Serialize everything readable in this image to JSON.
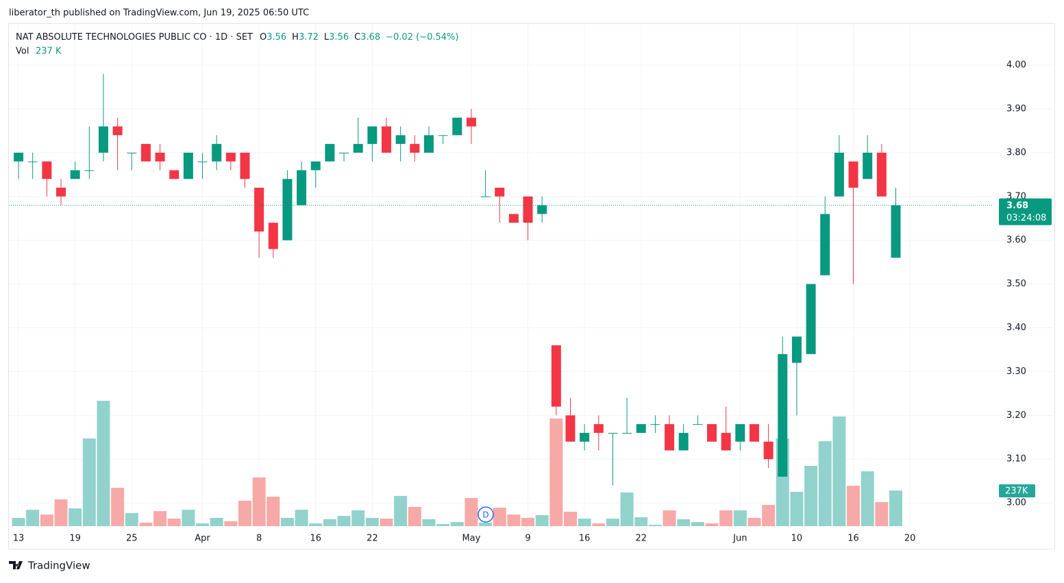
{
  "chart_data": {
    "type": "candlestick",
    "published": "liberator_th published on TradingView.com, Jun 19, 2025 06:50 UTC",
    "title": "NAT ABSOLUTE TECHNOLOGIES PUBLIC CO · 1D · SET",
    "ohlc_letters": [
      "O",
      "H",
      "L",
      "C"
    ],
    "change": "−0.02 (−0.54%)",
    "volume_title": "Vol",
    "last_volume_label": "237 K",
    "volume_axis_label": "237K",
    "countdown": "03:24:08",
    "dividend_marker": "D",
    "brand": "TradingView",
    "up_color": "#089981",
    "down_color": "#f23645",
    "volume_up_color": "#92d2cc",
    "volume_down_color": "#f7a9a7",
    "open": [
      3.78,
      3.78,
      3.78,
      3.72,
      3.74,
      3.76,
      3.8,
      3.86,
      3.8,
      3.82,
      3.8,
      3.76,
      3.74,
      3.78,
      3.78,
      3.8,
      3.8,
      3.72,
      3.64,
      3.6,
      3.68,
      3.76,
      3.78,
      3.8,
      3.8,
      3.82,
      3.86,
      3.82,
      3.82,
      3.8,
      3.84,
      3.84,
      3.88,
      3.7,
      3.72,
      3.66,
      3.7,
      3.66,
      3.36,
      3.2,
      3.14,
      3.18,
      3.16,
      3.16,
      3.16,
      3.18,
      3.18,
      3.12,
      3.18,
      3.18,
      3.16,
      3.14,
      3.18,
      3.14,
      3.06,
      3.32,
      3.34,
      3.52,
      3.7,
      3.78,
      3.74,
      3.8,
      3.56
    ],
    "high": [
      3.8,
      3.8,
      3.78,
      3.74,
      3.78,
      3.86,
      3.98,
      3.88,
      3.8,
      3.82,
      3.82,
      3.76,
      3.8,
      3.8,
      3.84,
      3.8,
      3.8,
      3.72,
      3.64,
      3.76,
      3.78,
      3.78,
      3.82,
      3.8,
      3.88,
      3.86,
      3.88,
      3.86,
      3.84,
      3.86,
      3.84,
      3.88,
      3.9,
      3.76,
      3.72,
      3.66,
      3.7,
      3.7,
      3.36,
      3.24,
      3.18,
      3.2,
      3.16,
      3.24,
      3.18,
      3.2,
      3.2,
      3.18,
      3.2,
      3.18,
      3.22,
      3.18,
      3.18,
      3.18,
      3.38,
      3.38,
      3.5,
      3.7,
      3.84,
      3.78,
      3.84,
      3.82,
      3.72
    ],
    "low": [
      3.74,
      3.74,
      3.7,
      3.68,
      3.74,
      3.74,
      3.78,
      3.76,
      3.76,
      3.78,
      3.76,
      3.74,
      3.74,
      3.74,
      3.76,
      3.76,
      3.72,
      3.56,
      3.56,
      3.6,
      3.68,
      3.72,
      3.78,
      3.78,
      3.8,
      3.78,
      3.8,
      3.78,
      3.78,
      3.8,
      3.82,
      3.84,
      3.82,
      3.7,
      3.64,
      3.64,
      3.6,
      3.64,
      3.2,
      3.14,
      3.12,
      3.12,
      3.04,
      3.16,
      3.16,
      3.16,
      3.12,
      3.12,
      3.18,
      3.14,
      3.12,
      3.12,
      3.14,
      3.08,
      3.06,
      3.2,
      3.34,
      3.52,
      3.7,
      3.5,
      3.74,
      3.7,
      3.56
    ],
    "close": [
      3.8,
      3.78,
      3.74,
      3.7,
      3.76,
      3.76,
      3.86,
      3.84,
      3.8,
      3.78,
      3.78,
      3.74,
      3.8,
      3.78,
      3.82,
      3.78,
      3.74,
      3.62,
      3.58,
      3.74,
      3.76,
      3.78,
      3.82,
      3.8,
      3.82,
      3.86,
      3.8,
      3.84,
      3.8,
      3.84,
      3.84,
      3.88,
      3.86,
      3.7,
      3.7,
      3.64,
      3.64,
      3.68,
      3.22,
      3.14,
      3.16,
      3.16,
      3.16,
      3.16,
      3.18,
      3.18,
      3.12,
      3.16,
      3.18,
      3.14,
      3.12,
      3.18,
      3.14,
      3.1,
      3.34,
      3.38,
      3.5,
      3.66,
      3.8,
      3.72,
      3.8,
      3.7,
      3.68
    ],
    "volume": [
      55,
      109,
      77,
      178,
      118,
      583,
      834,
      255,
      87,
      23,
      100,
      50,
      109,
      18,
      55,
      32,
      169,
      324,
      196,
      55,
      109,
      18,
      46,
      68,
      105,
      55,
      50,
      201,
      128,
      46,
      14,
      27,
      187,
      23,
      123,
      77,
      55,
      73,
      716,
      96,
      50,
      18,
      50,
      224,
      59,
      9,
      105,
      46,
      27,
      18,
      105,
      105,
      55,
      141,
      583,
      228,
      401,
      565,
      730,
      269,
      365,
      160,
      237
    ],
    "xlim": [
      -0.68,
      68.9
    ],
    "xticks": [
      {
        "value": 0,
        "label": "13"
      },
      {
        "value": 4,
        "label": "19"
      },
      {
        "value": 8,
        "label": "25"
      },
      {
        "value": 13,
        "label": "Apr"
      },
      {
        "value": 17,
        "label": "8"
      },
      {
        "value": 21,
        "label": "16"
      },
      {
        "value": 25,
        "label": "22"
      },
      {
        "value": 32,
        "label": "May"
      },
      {
        "value": 36,
        "label": "9"
      },
      {
        "value": 40,
        "label": "16"
      },
      {
        "value": 44,
        "label": "22"
      },
      {
        "value": 51,
        "label": "Jun"
      },
      {
        "value": 55,
        "label": "10"
      },
      {
        "value": 59,
        "label": "16"
      },
      {
        "value": 63,
        "label": "20"
      }
    ],
    "ylim": [
      2.947,
      4.094
    ],
    "yticks": [
      {
        "value": 3,
        "label": "3.00"
      },
      {
        "value": 3.1,
        "label": "3.10"
      },
      {
        "value": 3.2,
        "label": "3.20"
      },
      {
        "value": 3.3,
        "label": "3.30"
      },
      {
        "value": 3.4,
        "label": "3.40"
      },
      {
        "value": 3.5,
        "label": "3.50"
      },
      {
        "value": 3.6,
        "label": "3.60"
      },
      {
        "value": 3.7,
        "label": "3.70"
      },
      {
        "value": 3.8,
        "label": "3.80"
      },
      {
        "value": 3.9,
        "label": "3.90"
      },
      {
        "value": 4,
        "label": "4.00"
      }
    ],
    "volume_lim": [
      0,
      3341
    ],
    "grid": true
  }
}
